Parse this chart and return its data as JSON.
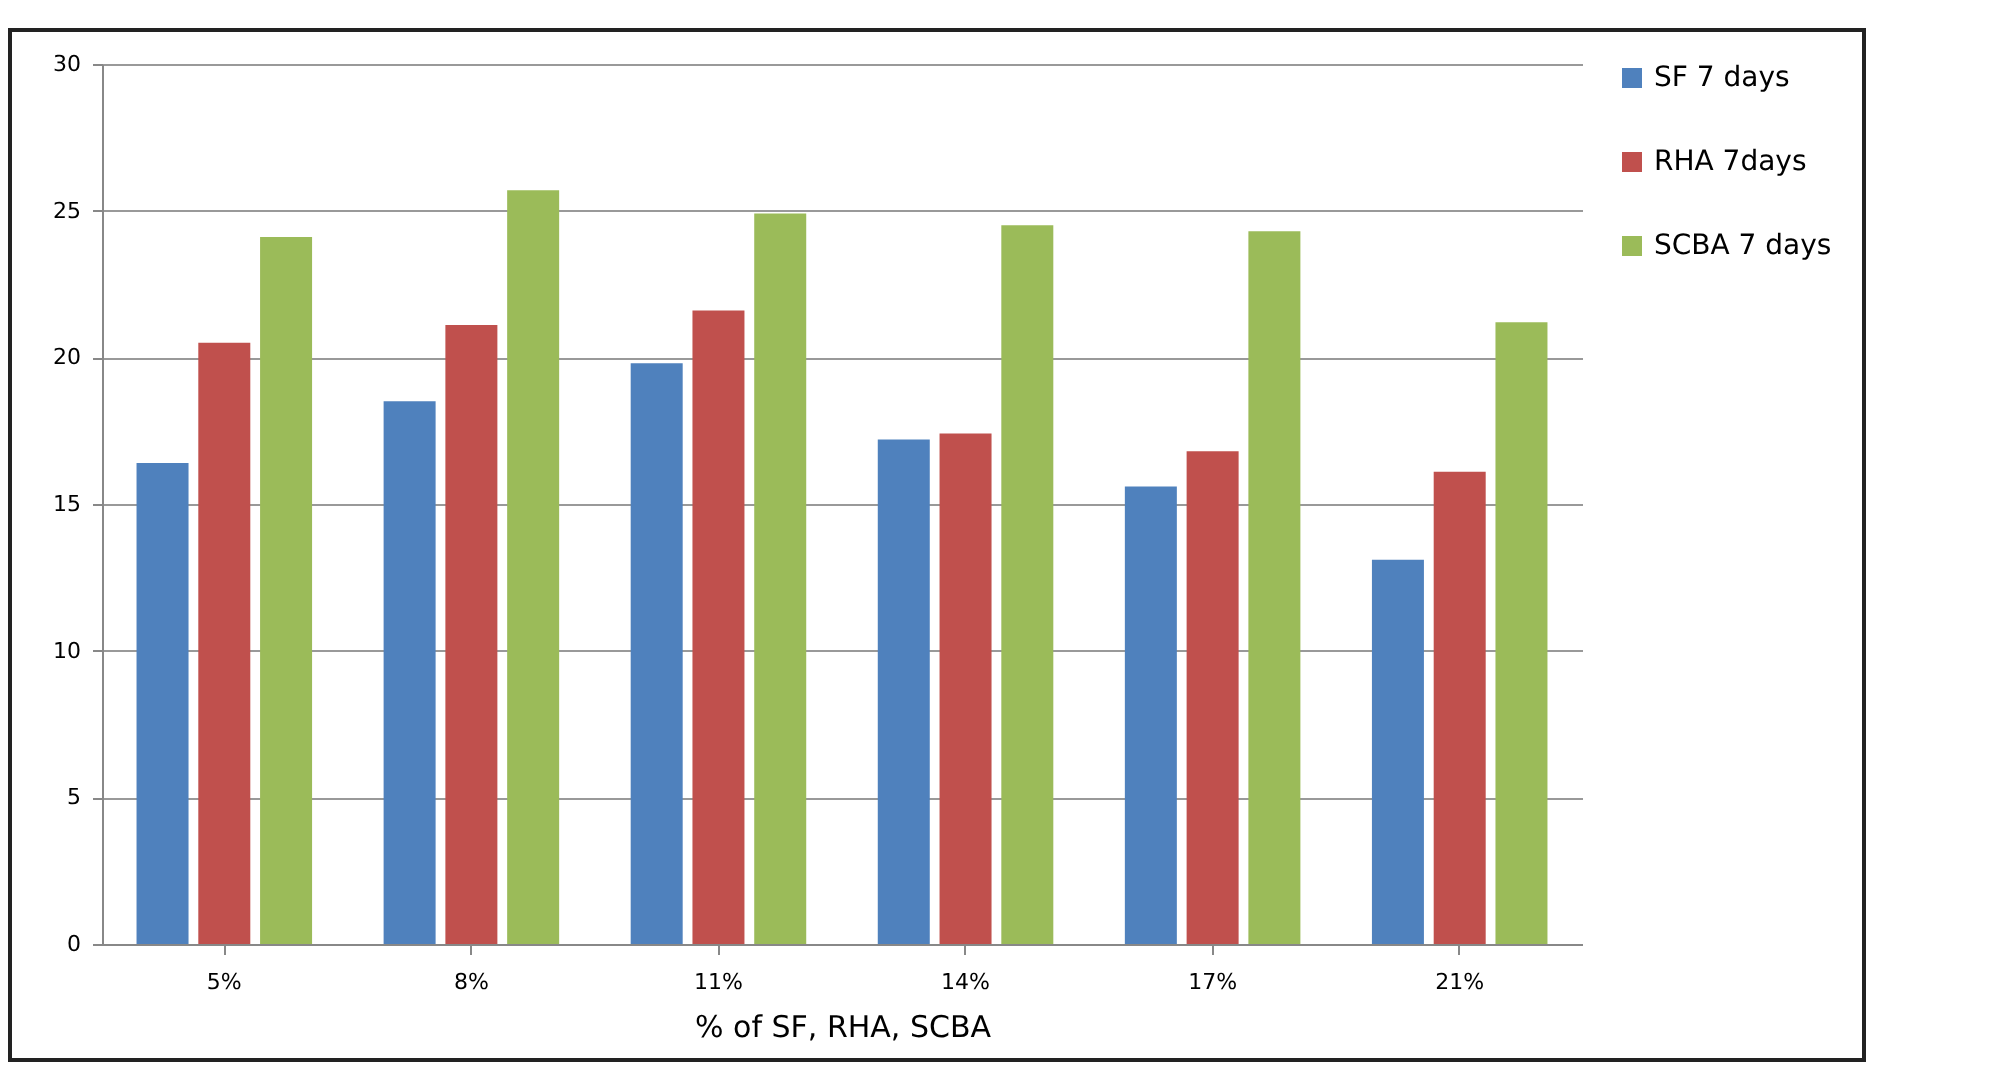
{
  "chart_data": {
    "type": "bar",
    "xlabel": "% of SF, RHA, SCBA",
    "categories": [
      "5%",
      "8%",
      "11%",
      "14%",
      "17%",
      "21%"
    ],
    "series": [
      {
        "name": "SF  7 days",
        "color": "#4f81bd",
        "values": [
          16.4,
          18.5,
          19.8,
          17.2,
          15.6,
          13.1
        ]
      },
      {
        "name": "RHA  7days",
        "color": "#c0504d",
        "values": [
          20.5,
          21.1,
          21.6,
          17.4,
          16.8,
          16.1
        ]
      },
      {
        "name": "SCBA  7 days",
        "color": "#9bbb59",
        "values": [
          24.1,
          25.7,
          24.9,
          24.5,
          24.3,
          21.2
        ]
      }
    ],
    "ylim": [
      0,
      30
    ],
    "yticks": [
      0,
      5,
      10,
      15,
      20,
      25,
      30
    ],
    "grid": "y",
    "legend": "right"
  }
}
